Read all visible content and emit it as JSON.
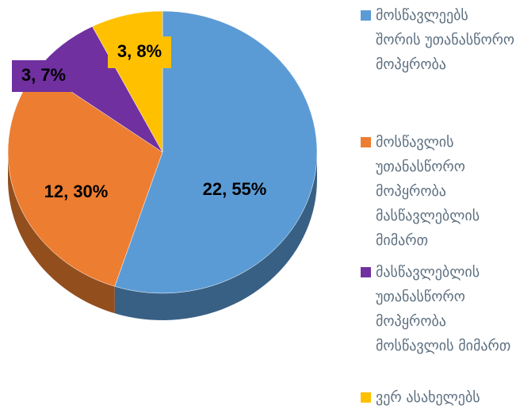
{
  "chart_data": {
    "type": "pie",
    "categories": [
      "მოსწავლეებს შორის უთანასწორო მოპყრობა",
      "მოსწავლის უთანასწორო მოპყრობა მასწავლებლის მიმართ",
      "მასწავლებლის უთანასწორო მოპყრობა მოსწავლის მიმართ",
      "ვერ ასახელებს"
    ],
    "values": [
      22,
      12,
      3,
      3
    ],
    "value_labels": [
      "22, 55%",
      "12, 30%",
      "3, 7%",
      "3, 8%"
    ],
    "colors": [
      "#5b9bd5",
      "#ed7d31",
      "#7030a0",
      "#ffc000"
    ],
    "legend": "right"
  }
}
